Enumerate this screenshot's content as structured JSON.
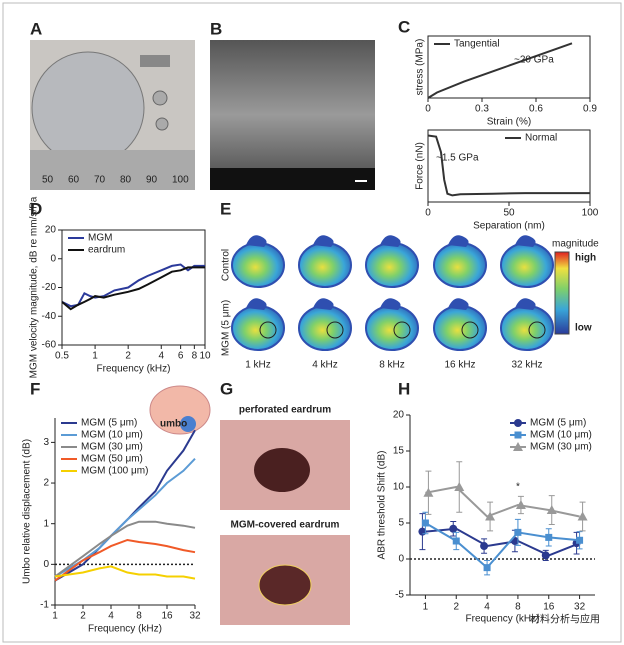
{
  "panel_letters": [
    "A",
    "B",
    "C",
    "D",
    "E",
    "F",
    "G",
    "H"
  ],
  "photo_a": {
    "ruler": [
      "50",
      "60",
      "70",
      "80",
      "90",
      "100"
    ]
  },
  "panel_e": {
    "rows": [
      "Control",
      "MGM (5 μm)"
    ],
    "columns": [
      "1 kHz",
      "4 kHz",
      "8 kHz",
      "16 kHz",
      "32 kHz"
    ],
    "colorbar_title": "magnitude",
    "high": "high",
    "low": "low"
  },
  "panel_f_inset": "umbo",
  "panel_g": {
    "top": "perforated eardrum",
    "bottom": "MGM-covered eardrum"
  },
  "watermark": "材料分析与应用",
  "chart_data": [
    {
      "type": "line",
      "frame": true,
      "xlabel": "Strain (%)",
      "ylabel": "stress (MPa)",
      "annotations": [
        "~20 GPa"
      ],
      "legend": "top-left",
      "xlim": [
        0,
        0.9
      ],
      "xticks": [
        0,
        0.3,
        0.6,
        0.9
      ],
      "ylim": [
        0,
        170
      ],
      "x": [
        0,
        0.05,
        0.2,
        0.4,
        0.6,
        0.8
      ],
      "series": [
        {
          "name": "Tangential",
          "color": "#333333",
          "values": [
            0,
            15,
            45,
            80,
            115,
            150
          ]
        }
      ]
    },
    {
      "type": "line",
      "frame": true,
      "xlabel": "Separation (nm)",
      "ylabel": "Force (nN)",
      "annotations": [
        "~1.5 GPa"
      ],
      "legend": "top-right",
      "xlim": [
        0,
        100
      ],
      "xticks": [
        0,
        50,
        100
      ],
      "ylim": [
        -20,
        110
      ],
      "x": [
        0,
        5,
        8,
        10,
        12,
        15,
        20,
        40,
        60,
        80,
        100
      ],
      "series": [
        {
          "name": "Normal",
          "color": "#333333",
          "values": [
            100,
            98,
            70,
            20,
            -5,
            -8,
            -6,
            -5,
            -4,
            -4,
            -4
          ]
        }
      ]
    },
    {
      "type": "line",
      "frame": true,
      "xscale": "log",
      "xlabel": "Frequency (kHz)",
      "ylabel": "MGM velocity magnitude, dB re mm/s/Pa",
      "legend": "top-left",
      "xlim": [
        0.5,
        10
      ],
      "xticks": [
        0.5,
        1,
        2,
        4,
        6,
        8,
        10
      ],
      "ylim": [
        -60,
        20
      ],
      "yticks": [
        -60,
        -40,
        -20,
        0,
        20
      ],
      "x": [
        0.5,
        0.6,
        0.7,
        0.8,
        0.9,
        1,
        1.2,
        1.5,
        2,
        2.5,
        3,
        4,
        5,
        6,
        7,
        8,
        10
      ],
      "series": [
        {
          "name": "MGM",
          "color": "#2b3a9b",
          "values": [
            -30,
            -33,
            -32,
            -24,
            -26,
            -27,
            -26,
            -22,
            -20,
            -15,
            -12,
            -8,
            -5,
            -4,
            -8,
            -5,
            -5
          ]
        },
        {
          "name": "eardrum",
          "color": "#111111",
          "values": [
            -30,
            -35,
            -32,
            -30,
            -28,
            -26,
            -27,
            -25,
            -23,
            -21,
            -18,
            -13,
            -9,
            -8,
            -6,
            -6,
            -6
          ]
        }
      ]
    },
    {
      "type": "line",
      "frame": false,
      "xscale": "log",
      "xlabel": "Frequency (kHz)",
      "ylabel": "Umbo relative displacement (dB)",
      "legend": "top-left",
      "hline": 0,
      "xlim": [
        1,
        32
      ],
      "xticks": [
        1,
        2,
        4,
        8,
        16,
        32
      ],
      "ylim": [
        -1,
        3.6
      ],
      "yticks": [
        -1,
        0,
        1,
        2,
        3
      ],
      "x": [
        1,
        2,
        3,
        4,
        6,
        8,
        12,
        16,
        24,
        32
      ],
      "series": [
        {
          "name": "MGM (5 μm)",
          "color": "#2b3a8f",
          "values": [
            -0.4,
            0,
            0.4,
            0.7,
            1.1,
            1.4,
            1.8,
            2.3,
            2.8,
            3.3
          ]
        },
        {
          "name": "MGM (10 μm)",
          "color": "#5b9bd5",
          "values": [
            -0.3,
            0.1,
            0.4,
            0.7,
            1.1,
            1.35,
            1.7,
            2.0,
            2.3,
            2.6
          ]
        },
        {
          "name": "MGM (30 μm)",
          "color": "#8a8a8a",
          "values": [
            -0.3,
            0.2,
            0.5,
            0.7,
            0.95,
            1.05,
            1.05,
            1.0,
            0.95,
            0.9
          ]
        },
        {
          "name": "MGM (50 μm)",
          "color": "#f05a28",
          "values": [
            -0.4,
            0.1,
            0.3,
            0.45,
            0.6,
            0.55,
            0.5,
            0.45,
            0.35,
            0.3
          ]
        },
        {
          "name": "MGM (100 μm)",
          "color": "#f5d000",
          "values": [
            -0.3,
            -0.2,
            -0.1,
            -0.05,
            -0.2,
            -0.25,
            -0.25,
            -0.3,
            -0.3,
            -0.35
          ]
        }
      ]
    },
    {
      "type": "errorbar",
      "frame": false,
      "xlabel": "Frequency (kHz)",
      "ylabel": "ABR threshold Shift (dB)",
      "legend": "top-right",
      "hline": 0,
      "annotations": [
        "*"
      ],
      "categories": [
        "1",
        "2",
        "4",
        "8",
        "16",
        "32"
      ],
      "ylim": [
        -5,
        20
      ],
      "yticks": [
        -5,
        0,
        5,
        10,
        15,
        20
      ],
      "series": [
        {
          "name": "MGM (5 μm)",
          "color": "#2b3a8f",
          "marker": "circle",
          "values": [
            3.8,
            4.2,
            1.8,
            2.5,
            0.5,
            2.2
          ],
          "errors": [
            2.5,
            1,
            1,
            1.5,
            0.7,
            1.5
          ]
        },
        {
          "name": "MGM (10 μm)",
          "color": "#4a8fd0",
          "marker": "square",
          "values": [
            5,
            2.5,
            -1.2,
            3.7,
            3,
            2.6
          ],
          "errors": [
            1.5,
            1.2,
            1,
            1.8,
            1.2,
            1.2
          ]
        },
        {
          "name": "MGM (30 μm)",
          "color": "#999999",
          "marker": "triangle",
          "values": [
            9.2,
            10,
            5.9,
            7.5,
            6.8,
            5.9
          ],
          "errors": [
            3,
            3.5,
            2,
            1.2,
            2,
            2
          ]
        }
      ]
    }
  ]
}
